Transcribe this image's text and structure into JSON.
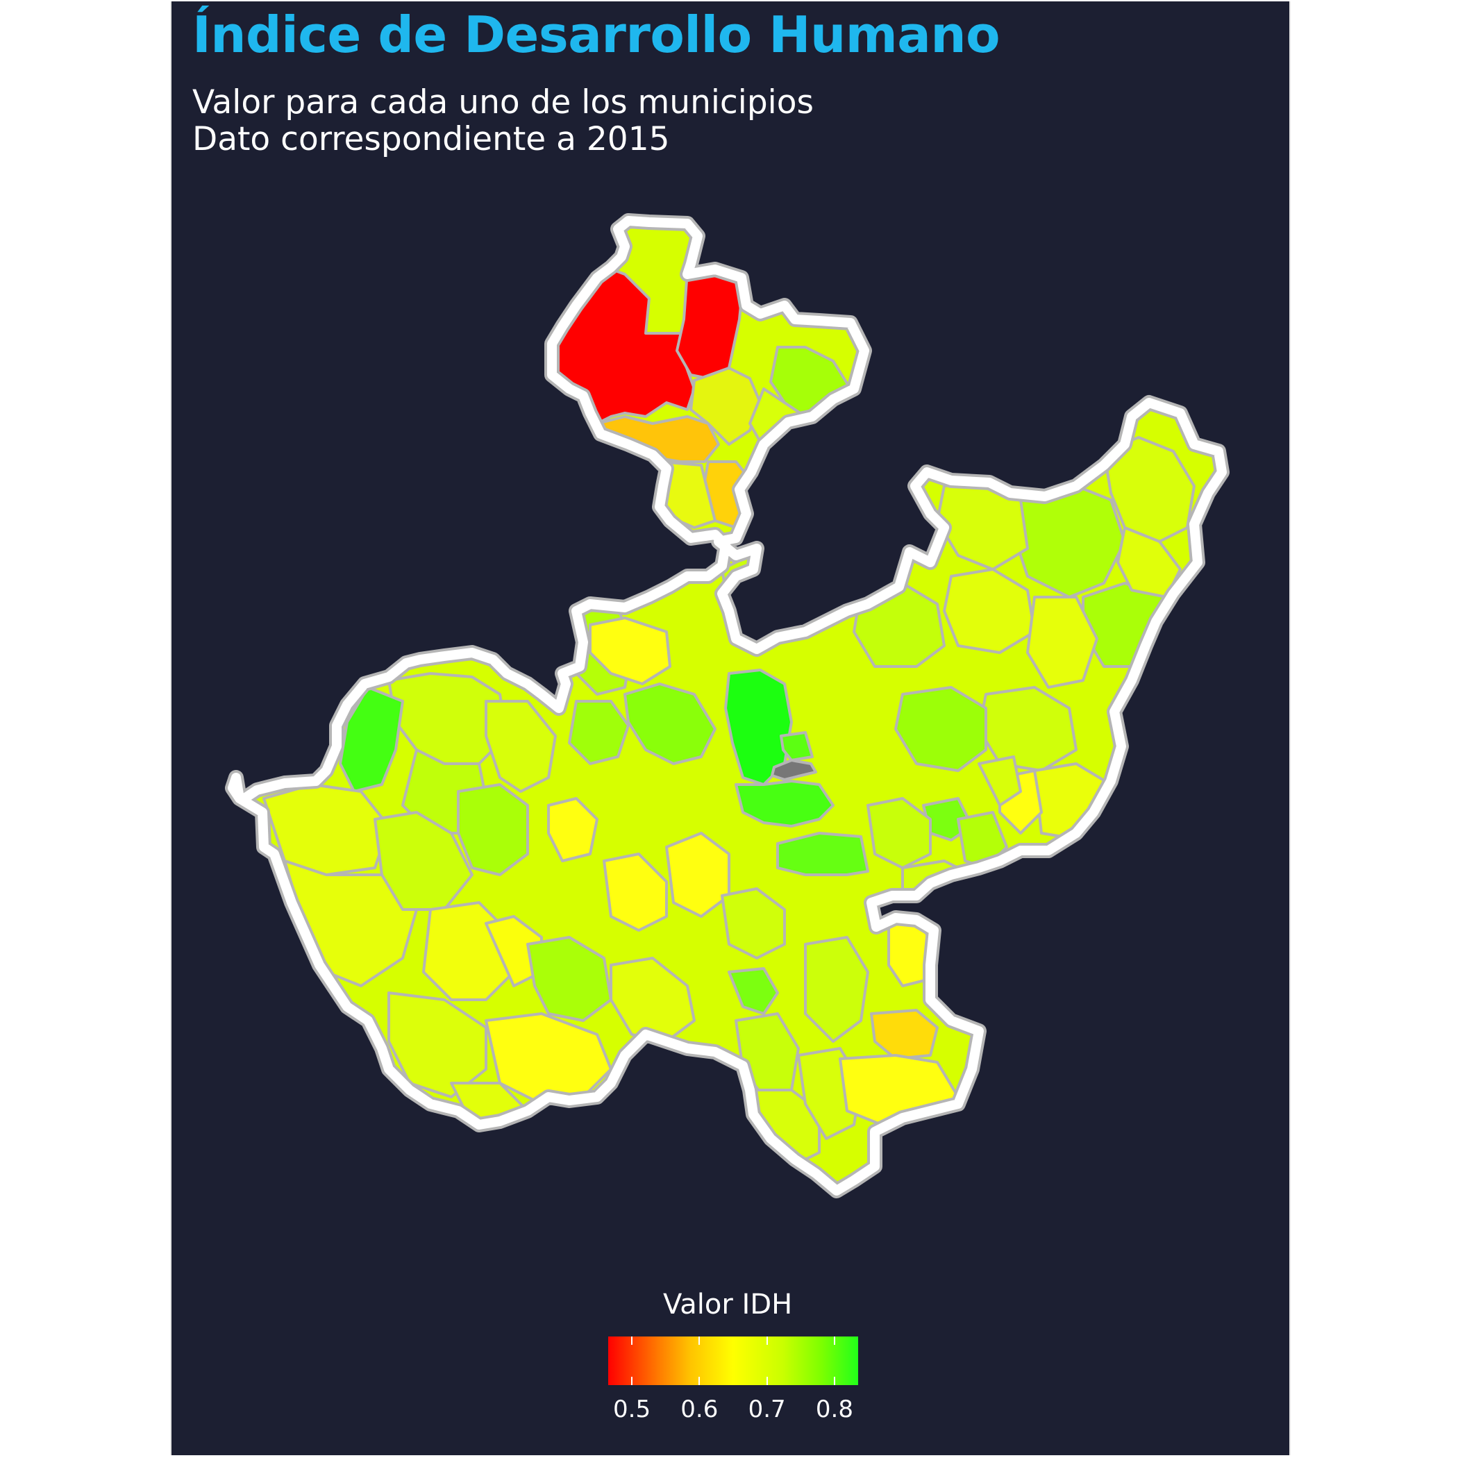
{
  "title": "Índice de Desarrollo Humano",
  "subtitle": {
    "line1": "Valor para cada uno de los municipios",
    "line2": "Dato correspondiente a 2015"
  },
  "map": {
    "region": "Jalisco municipalities",
    "background_color": "#1c1f32",
    "outline_color": "#ffffff",
    "border_color": "#b5b5b5",
    "missing_color": "#777777"
  },
  "legend": {
    "title": "Valor IDH",
    "placement": "bottom",
    "ticks": [
      "0.5",
      "0.6",
      "0.7",
      "0.8"
    ],
    "tick_values": [
      0.5,
      0.6,
      0.7,
      0.8
    ],
    "range": [
      0.465,
      0.835
    ],
    "colors": [
      "#ff0000",
      "#ffff00",
      "#22ff1a"
    ]
  }
}
